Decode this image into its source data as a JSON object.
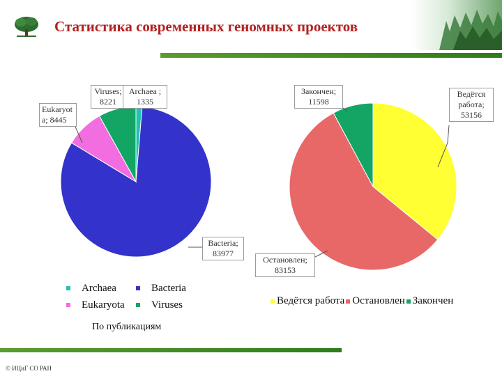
{
  "header": {
    "title": "Статистика современных геномных проектов",
    "logo_icon": "tree-icon"
  },
  "note": "По публикациям",
  "footer": "© ИЦиГ СО РАН",
  "colors": {
    "archaea": "#1fc3b0",
    "bacteria": "#3333cc",
    "eukaryota": "#f26ee0",
    "viruses": "#13a564",
    "in_progress": "#ffff33",
    "stopped": "#e86868",
    "completed": "#13a564"
  },
  "chart_data": [
    {
      "type": "pie",
      "title": "",
      "labels": [
        "Archaea",
        "Bacteria",
        "Eukaryota",
        "Viruses"
      ],
      "values": [
        1335,
        83977,
        8445,
        8221
      ],
      "point_labels": [
        "Archaea ; 1335",
        "Bacteria; 83977",
        "Eukaryot a; 8445",
        "Viruses; 8221"
      ],
      "legend": [
        "Archaea",
        "Bacteria",
        "Eukaryota",
        "Viruses"
      ],
      "legend_placement": "bottom"
    },
    {
      "type": "pie",
      "title": "",
      "labels": [
        "Ведётся работа",
        "Остановлен",
        "Закончен"
      ],
      "values": [
        53156,
        83153,
        11598
      ],
      "point_labels": [
        "Ведётся работа; 53156",
        "Остановлен; 83153",
        "Закончен; 11598"
      ],
      "legend": [
        "Ведётся работа",
        "Остановлен",
        "Закончен"
      ],
      "legend_placement": "bottom"
    }
  ]
}
